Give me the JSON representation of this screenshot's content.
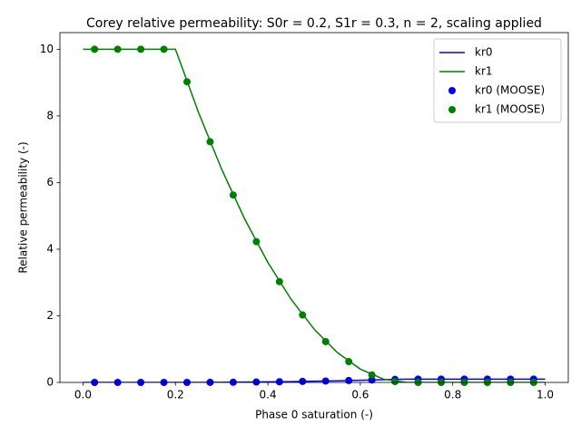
{
  "chart_data": {
    "type": "line",
    "title": "Corey relative permeability: S0r = 0.2, S1r = 0.3, n = 2, scaling applied",
    "x_label": "Phase 0 saturation (-)",
    "y_label": "Relative permeability (-)",
    "xlim": [
      -0.05,
      1.05
    ],
    "ylim": [
      0,
      10.5
    ],
    "xticks": [
      {
        "value": 0,
        "label": "0.0"
      },
      {
        "value": 0.2,
        "label": "0.2"
      },
      {
        "value": 0.4,
        "label": "0.4"
      },
      {
        "value": 0.6,
        "label": "0.6"
      },
      {
        "value": 0.8,
        "label": "0.8"
      },
      {
        "value": 1,
        "label": "1.0"
      }
    ],
    "yticks": [
      0,
      2,
      4,
      6,
      8,
      10
    ],
    "legend": "upper right",
    "series": [
      {
        "name": "kr0",
        "color": "#0000ff",
        "style": "line",
        "x": [
          0,
          0.05,
          0.1,
          0.15,
          0.2,
          0.25,
          0.3,
          0.35,
          0.4,
          0.45,
          0.5,
          0.55,
          0.6,
          0.65,
          0.7,
          0.75,
          0.8,
          0.85,
          0.9,
          0.95,
          1
        ],
        "values": [
          0,
          0,
          0,
          0,
          0,
          0.001,
          0.004,
          0.009,
          0.016,
          0.025,
          0.036,
          0.049,
          0.064,
          0.081,
          0.1,
          0.1,
          0.1,
          0.1,
          0.1,
          0.1,
          0.1
        ]
      },
      {
        "name": "kr1",
        "color": "#008000",
        "style": "line",
        "x": [
          0,
          0.05,
          0.1,
          0.15,
          0.2,
          0.25,
          0.3,
          0.35,
          0.4,
          0.45,
          0.5,
          0.55,
          0.6,
          0.65,
          0.7,
          0.75,
          0.8,
          0.85,
          0.9,
          0.95,
          1
        ],
        "values": [
          10,
          10,
          10,
          10,
          10,
          8.1,
          6.4,
          4.9,
          3.6,
          2.5,
          1.6,
          0.9,
          0.4,
          0.1,
          0,
          0,
          0,
          0,
          0,
          0,
          0
        ]
      },
      {
        "name": "kr0 (MOOSE)",
        "color": "#0000ff",
        "style": "markers",
        "x": [
          0.025,
          0.075,
          0.125,
          0.175,
          0.225,
          0.275,
          0.325,
          0.375,
          0.425,
          0.475,
          0.525,
          0.575,
          0.625,
          0.675,
          0.725,
          0.775,
          0.825,
          0.875,
          0.925,
          0.975
        ],
        "values": [
          0,
          0,
          0,
          0,
          0.00025,
          0.00225,
          0.00625,
          0.01225,
          0.02025,
          0.03025,
          0.04225,
          0.05625,
          0.07225,
          0.09025,
          0.1,
          0.1,
          0.1,
          0.1,
          0.1,
          0.1
        ]
      },
      {
        "name": "kr1 (MOOSE)",
        "color": "#008000",
        "style": "markers",
        "x": [
          0.025,
          0.075,
          0.125,
          0.175,
          0.225,
          0.275,
          0.325,
          0.375,
          0.425,
          0.475,
          0.525,
          0.575,
          0.625,
          0.675,
          0.725,
          0.775,
          0.825,
          0.875,
          0.925,
          0.975
        ],
        "values": [
          10,
          10,
          10,
          10,
          9.025,
          7.225,
          5.625,
          4.225,
          3.025,
          2.025,
          1.225,
          0.625,
          0.225,
          0.025,
          0,
          0,
          0,
          0,
          0,
          0
        ]
      }
    ]
  }
}
